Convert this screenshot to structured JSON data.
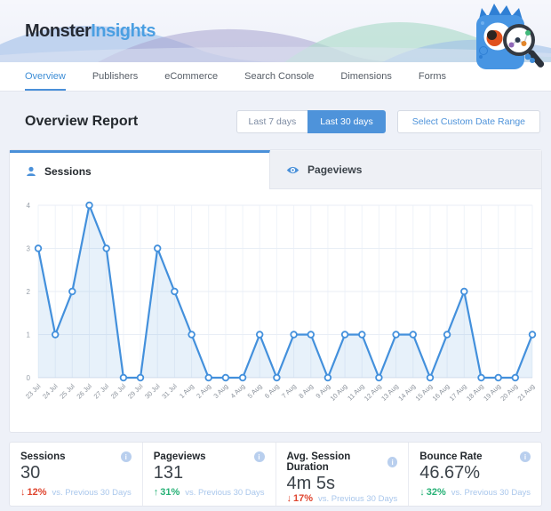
{
  "logo": {
    "monster": "Monster",
    "insights": "Insights"
  },
  "nav": {
    "items": [
      {
        "label": "Overview",
        "active": true
      },
      {
        "label": "Publishers",
        "active": false
      },
      {
        "label": "eCommerce",
        "active": false
      },
      {
        "label": "Search Console",
        "active": false
      },
      {
        "label": "Dimensions",
        "active": false
      },
      {
        "label": "Forms",
        "active": false
      }
    ]
  },
  "toolbar": {
    "title": "Overview Report",
    "last7": "Last 7 days",
    "last30": "Last 30 days",
    "custom": "Select Custom Date Range",
    "active_range": "Last 30 days"
  },
  "tabs": {
    "sessions": "Sessions",
    "pageviews": "Pageviews"
  },
  "chart_data": {
    "type": "area",
    "title": "Sessions",
    "x": [
      "23 Jul",
      "24 Jul",
      "25 Jul",
      "26 Jul",
      "27 Jul",
      "28 Jul",
      "29 Jul",
      "30 Jul",
      "31 Jul",
      "1 Aug",
      "2 Aug",
      "3 Aug",
      "4 Aug",
      "5 Aug",
      "6 Aug",
      "7 Aug",
      "8 Aug",
      "9 Aug",
      "10 Aug",
      "11 Aug",
      "12 Aug",
      "13 Aug",
      "14 Aug",
      "15 Aug",
      "16 Aug",
      "17 Aug",
      "18 Aug",
      "19 Aug",
      "20 Aug",
      "21 Aug"
    ],
    "values": [
      3,
      1,
      2,
      4,
      3,
      0,
      0,
      3,
      2,
      1,
      0,
      0,
      0,
      1,
      0,
      1,
      1,
      0,
      1,
      1,
      0,
      1,
      1,
      0,
      1,
      2,
      0,
      0,
      0,
      1
    ],
    "ylim": [
      0,
      4
    ],
    "yticks": [
      0,
      1,
      2,
      3,
      4
    ],
    "grid": true,
    "legend": "none",
    "line_color": "#4390dc",
    "fill_color": "rgba(67,144,220,0.13)",
    "marker": "circle-white-fill"
  },
  "stats": {
    "cards": [
      {
        "label": "Sessions",
        "value": "30",
        "change": "12%",
        "direction": "down",
        "trend": "negative",
        "compare": "vs. Previous 30 Days"
      },
      {
        "label": "Pageviews",
        "value": "131",
        "change": "31%",
        "direction": "up",
        "trend": "positive",
        "compare": "vs. Previous 30 Days"
      },
      {
        "label": "Avg. Session Duration",
        "value": "4m 5s",
        "change": "17%",
        "direction": "down",
        "trend": "negative",
        "compare": "vs. Previous 30 Days"
      },
      {
        "label": "Bounce Rate",
        "value": "46.67%",
        "change": "32%",
        "direction": "down",
        "trend": "positive",
        "compare": "vs. Previous 30 Days"
      }
    ]
  },
  "colors": {
    "accent": "#4a90d9",
    "negative": "#df452f",
    "positive": "#27b176",
    "compare_text": "#a9c7ec",
    "axis_text": "#98a0aa",
    "gridline": "#e8eef6"
  },
  "icons": {
    "info": "i"
  }
}
